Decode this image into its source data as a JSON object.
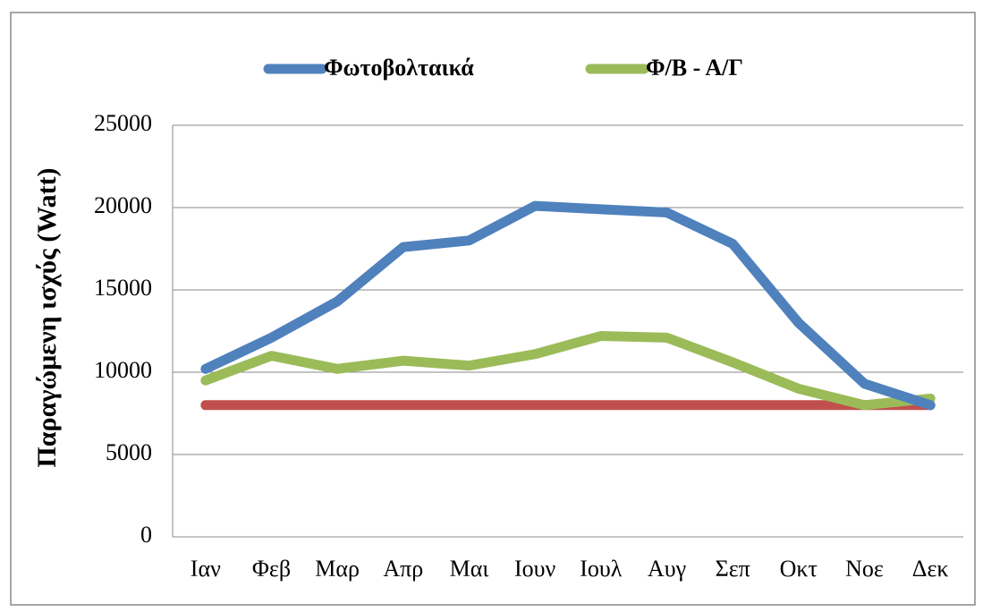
{
  "chart_data": {
    "type": "line",
    "ylabel": "Παραγώμενη ισχύς (Watt)",
    "categories": [
      "Ιαν",
      "Φεβ",
      "Μαρ",
      "Απρ",
      "Μαι",
      "Ιουν",
      "Ιουλ",
      "Αυγ",
      "Σεπ",
      "Οκτ",
      "Νοε",
      "Δεκ"
    ],
    "series": [
      {
        "name": "Φωτοβολταικά",
        "color": "#4f81bd",
        "values": [
          10200,
          12100,
          14300,
          17600,
          18000,
          20100,
          19900,
          19700,
          17800,
          13000,
          9300,
          8000
        ]
      },
      {
        "name": "Φ/Β - Α/Γ",
        "color": "#9bbb59",
        "values": [
          9500,
          11000,
          10200,
          10700,
          10400,
          11100,
          12200,
          12100,
          10600,
          9000,
          8000,
          8400
        ]
      },
      {
        "color": "#c0504d",
        "values": [
          8000,
          8000,
          8000,
          8000,
          8000,
          8000,
          8000,
          8000,
          8000,
          8000,
          8000,
          8000
        ]
      }
    ],
    "ylim": [
      0,
      25000
    ],
    "yticks": [
      0,
      5000,
      10000,
      15000,
      20000,
      25000
    ],
    "grid": true,
    "legend": "top"
  }
}
